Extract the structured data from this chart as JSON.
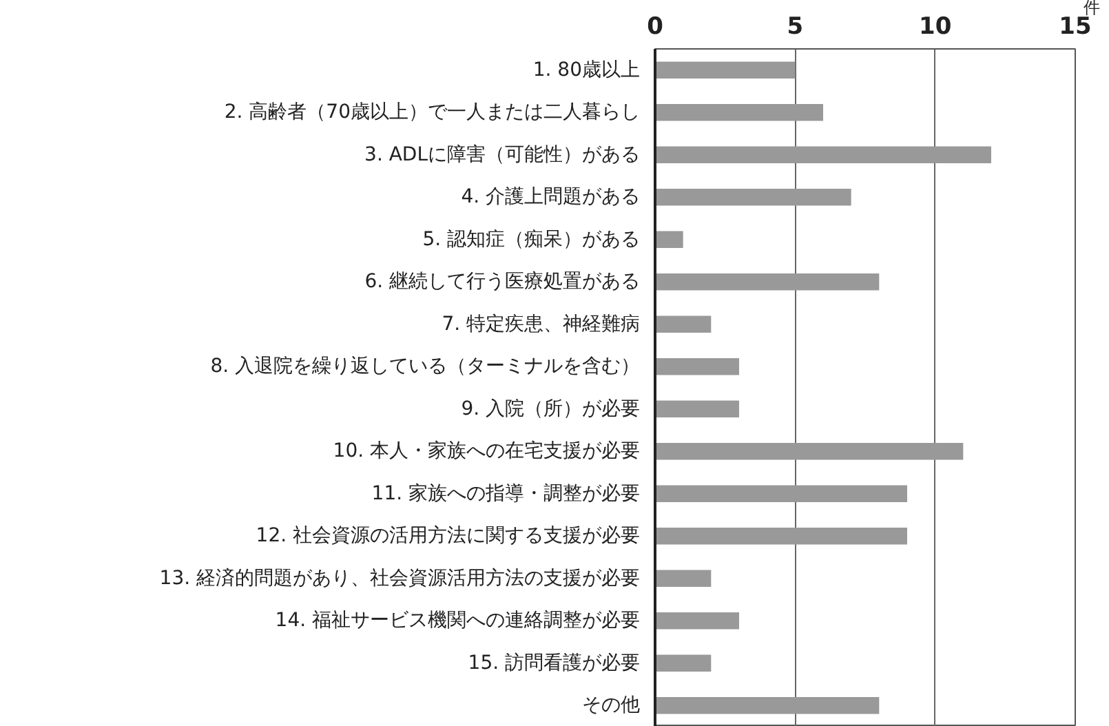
{
  "chart_data": {
    "type": "bar",
    "orientation": "horizontal",
    "xlabel": "件",
    "categories": [
      "1. 80歳以上",
      "2. 高齢者（70歳以上）で一人または二人暮らし",
      "3. ADLに障害（可能性）がある",
      "4. 介護上問題がある",
      "5. 認知症（痴呆）がある",
      "6. 継続して行う医療処置がある",
      "7. 特定疾患、神経難病",
      "8. 入退院を繰り返している（ターミナルを含む）",
      "9. 入院（所）が必要",
      "10. 本人・家族への在宅支援が必要",
      "11. 家族への指導・調整が必要",
      "12. 社会資源の活用方法に関する支援が必要",
      "13. 経済的問題があり、社会資源活用方法の支援が必要",
      "14. 福祉サービス機関への連絡調整が必要",
      "15. 訪問看護が必要",
      "その他"
    ],
    "values": [
      5,
      6,
      12,
      7,
      1,
      8,
      2,
      3,
      3,
      11,
      9,
      9,
      2,
      3,
      2,
      8
    ],
    "color": "#999999",
    "xlim": [
      0,
      15
    ],
    "xticks": [
      0,
      5,
      10,
      15
    ],
    "grid": "x"
  }
}
